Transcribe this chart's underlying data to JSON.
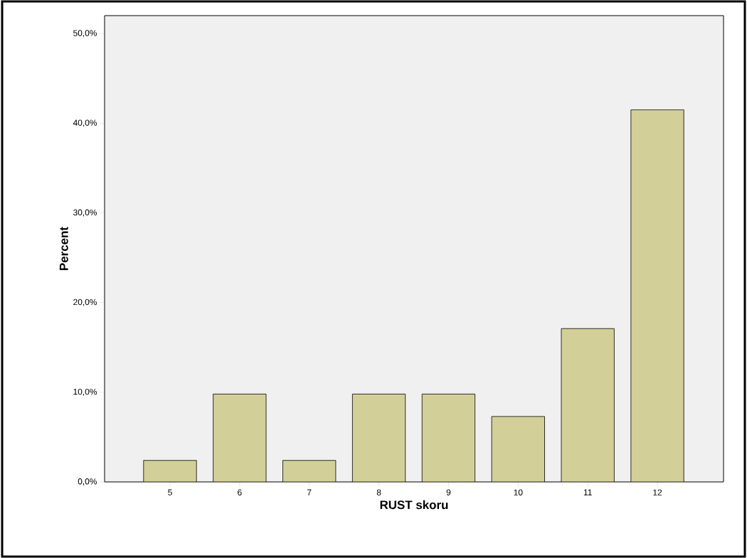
{
  "chart_data": {
    "type": "bar",
    "xlabel": "RUST skoru",
    "ylabel": "Percent",
    "categories": [
      "5",
      "6",
      "7",
      "8",
      "9",
      "10",
      "11",
      "12"
    ],
    "values": [
      2.4,
      9.8,
      2.4,
      9.8,
      9.8,
      7.3,
      17.1,
      41.5
    ],
    "color": "#d3cf98",
    "ylim": [
      0,
      52
    ],
    "yticks": [
      {
        "value": 0,
        "label": "0,0%"
      },
      {
        "value": 10,
        "label": "10,0%"
      },
      {
        "value": 20,
        "label": "20,0%"
      },
      {
        "value": 30,
        "label": "30,0%"
      },
      {
        "value": 40,
        "label": "40,0%"
      },
      {
        "value": 50,
        "label": "50,0%"
      }
    ]
  }
}
